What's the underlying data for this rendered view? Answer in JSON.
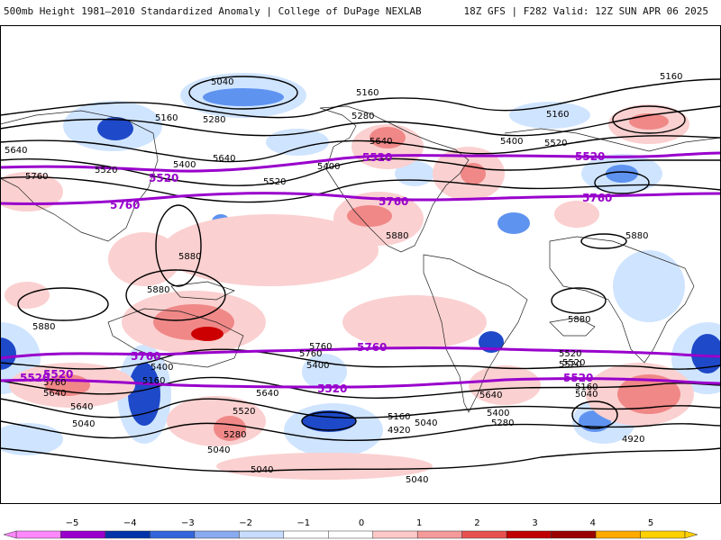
{
  "header": {
    "left_title": "500mb Height 1981–2010 Standardized Anomaly | College of DuPage NEXLAB",
    "right_title": "18Z GFS | F282 Valid: 12Z SUN APR 06 2025"
  },
  "map": {
    "contour_labels": [
      "5040",
      "5160",
      "5160",
      "5160",
      "5160",
      "5280",
      "5280",
      "5640",
      "5400",
      "5400",
      "5400",
      "5640",
      "5640",
      "5760",
      "5520",
      "5520",
      "5520",
      "5880",
      "5880",
      "5880",
      "5880",
      "5880",
      "5880",
      "5400",
      "5400",
      "5760",
      "5760",
      "5520",
      "5640",
      "5640",
      "5640",
      "5520",
      "5160",
      "5040",
      "5040",
      "5040",
      "4920",
      "5400",
      "5280",
      "5040",
      "5160",
      "5280",
      "5520",
      "5040",
      "4920",
      "5040",
      "5640",
      "5160",
      "5520",
      "5760"
    ],
    "highlight_labels": [
      "5520",
      "5520",
      "5520",
      "5520",
      "5760",
      "5760",
      "5760",
      "5760",
      "5760",
      "5520",
      "5520",
      "5520"
    ]
  },
  "colors": {
    "height_5520": "#9900cc",
    "height_5760": "#9900cc",
    "neg_anomaly_1": "#cfe4ff",
    "neg_anomaly_2": "#5f93f0",
    "neg_anomaly_3": "#1e49c8",
    "pos_anomaly_1": "#fbd0d0",
    "pos_anomaly_2": "#f08888",
    "pos_anomaly_3": "#cc0000"
  },
  "colorbar": {
    "ticks": [
      "−5",
      "−4",
      "−3",
      "−2",
      "−1",
      "0",
      "1",
      "2",
      "3",
      "4",
      "5"
    ],
    "colors": [
      "#ff88ff",
      "#9900cc",
      "#0033aa",
      "#3366dd",
      "#88aaf0",
      "#c8dcff",
      "#ffffff",
      "#ffffff",
      "#ffc8c8",
      "#f59a9a",
      "#e85050",
      "#c00000",
      "#990000",
      "#ffaa00",
      "#ffd000"
    ]
  }
}
